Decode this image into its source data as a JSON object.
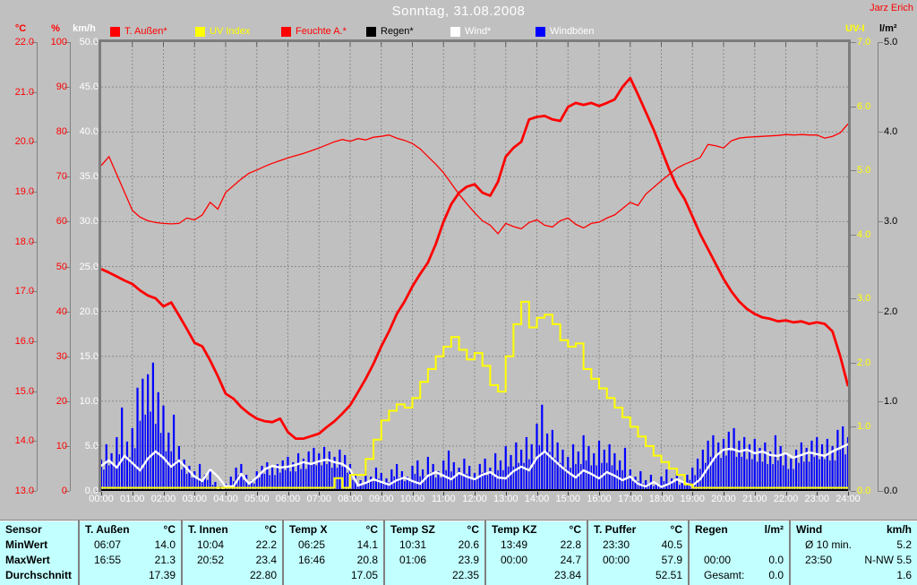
{
  "header": {
    "title": "Sonntag, 31.08.2008",
    "watermark": "Jarz Erich"
  },
  "legend": {
    "items": [
      {
        "label": "T. Außen*",
        "box": "#ff0000",
        "text": "#ff0000"
      },
      {
        "label": "UV Index",
        "box": "#ffff00",
        "text": "#ffff00"
      },
      {
        "label": "Feuchte A.*",
        "box": "#ff0000",
        "text": "#ff0000"
      },
      {
        "label": "Regen*",
        "box": "#000000",
        "text": "#000000"
      },
      {
        "label": "Wind*",
        "box": "#ffffff",
        "text": "#ffffff"
      },
      {
        "label": "Windböen",
        "box": "#0000ff",
        "text": "#ffffff"
      }
    ]
  },
  "axes": {
    "left": [
      {
        "unit": "°C",
        "color": "#ff0000",
        "ticks": [
          "22.0",
          "21.0",
          "20.0",
          "19.0",
          "18.0",
          "17.0",
          "16.0",
          "15.0",
          "14.0",
          "13.0"
        ]
      },
      {
        "unit": "%",
        "color": "#ff0000",
        "ticks": [
          "100",
          "90",
          "80",
          "70",
          "60",
          "50",
          "40",
          "30",
          "20",
          "10",
          "0"
        ]
      },
      {
        "unit": "km/h",
        "color": "#ffffff",
        "ticks": [
          "50.0",
          "45.0",
          "40.0",
          "35.0",
          "30.0",
          "25.0",
          "20.0",
          "15.0",
          "10.0",
          "5.0",
          "0.0"
        ]
      }
    ],
    "right": [
      {
        "unit": "UV-I",
        "color": "#ffff00",
        "ticks": [
          "7.0",
          "6.0",
          "5.0",
          "4.0",
          "3.0",
          "2.0",
          "1.0",
          "0.0"
        ]
      },
      {
        "unit": "l/m²",
        "color": "#000000",
        "ticks": [
          "5.0",
          "4.0",
          "3.0",
          "2.0",
          "1.0",
          "0.0"
        ]
      }
    ],
    "x_labels": [
      "00:00",
      "01:00",
      "02:00",
      "03:00",
      "04:00",
      "05:00",
      "06:00",
      "07:00",
      "08:00",
      "09:00",
      "10:00",
      "11:00",
      "12:00",
      "13:00",
      "14:00",
      "15:00",
      "16:00",
      "17:00",
      "18:00",
      "19:00",
      "20:00",
      "21:00",
      "22:00",
      "23:00",
      "24:00"
    ]
  },
  "chart_data": {
    "type": "line",
    "title": "Sonntag, 31.08.2008",
    "x_range_hours": [
      0,
      24
    ],
    "grid": "dashed, hourly vertical + 10 horizontal divisions",
    "legend_position": "top",
    "series": [
      {
        "name": "T. Außen",
        "unit": "°C",
        "color": "#ff0000",
        "style": "line-thick",
        "axis_min": 13,
        "axis_max": 22,
        "step_minutes": 15,
        "values": [
          17.45,
          17.38,
          17.3,
          17.22,
          17.15,
          17.02,
          16.92,
          16.86,
          16.7,
          16.78,
          16.52,
          16.25,
          15.97,
          15.9,
          15.62,
          15.3,
          14.95,
          14.85,
          14.68,
          14.55,
          14.45,
          14.4,
          14.38,
          14.45,
          14.18,
          14.05,
          14.05,
          14.1,
          14.15,
          14.28,
          14.4,
          14.55,
          14.72,
          14.98,
          15.25,
          15.55,
          15.9,
          16.2,
          16.55,
          16.8,
          17.1,
          17.35,
          17.58,
          17.95,
          18.4,
          18.75,
          18.98,
          19.1,
          19.15,
          18.98,
          18.92,
          19.2,
          19.7,
          19.88,
          20.0,
          20.45,
          20.5,
          20.52,
          20.45,
          20.42,
          20.7,
          20.78,
          20.74,
          20.78,
          20.72,
          20.78,
          20.85,
          21.1,
          21.28,
          20.95,
          20.6,
          20.25,
          19.85,
          19.45,
          19.1,
          18.85,
          18.5,
          18.15,
          17.85,
          17.55,
          17.25,
          17.0,
          16.8,
          16.65,
          16.55,
          16.48,
          16.45,
          16.4,
          16.42,
          16.38,
          16.4,
          16.35,
          16.38,
          16.35,
          16.2,
          15.7,
          15.1
        ]
      },
      {
        "name": "Feuchte A.",
        "unit": "%",
        "color": "#ff0000",
        "style": "line-thin",
        "axis_min": 0,
        "axis_max": 100,
        "step_minutes": 15,
        "values": [
          72.5,
          74.5,
          70.5,
          66.5,
          62.5,
          61.0,
          60.2,
          59.8,
          59.6,
          59.5,
          59.6,
          60.8,
          60.4,
          61.5,
          64.3,
          62.8,
          66.5,
          68.0,
          69.5,
          70.8,
          71.5,
          72.3,
          73.0,
          73.6,
          74.2,
          74.7,
          75.2,
          75.8,
          76.4,
          77.1,
          77.8,
          78.3,
          77.9,
          78.5,
          78.2,
          78.8,
          79.0,
          79.3,
          78.6,
          78.1,
          77.4,
          76.2,
          74.5,
          72.8,
          70.9,
          68.5,
          66.1,
          64.0,
          62.0,
          60.2,
          59.2,
          57.3,
          59.6,
          58.9,
          58.4,
          59.8,
          60.4,
          59.2,
          58.8,
          60.2,
          60.8,
          59.4,
          58.6,
          59.6,
          59.9,
          60.8,
          61.5,
          62.9,
          64.3,
          63.6,
          66.1,
          67.6,
          69.1,
          70.5,
          71.9,
          72.8,
          73.5,
          74.3,
          77.2,
          76.9,
          76.4,
          78.0,
          78.6,
          78.8,
          78.9,
          79.0,
          79.1,
          79.2,
          79.4,
          79.3,
          79.4,
          79.3,
          79.3,
          78.6,
          79.0,
          79.8,
          81.8
        ]
      },
      {
        "name": "UV Index",
        "unit": "UV-I",
        "color": "#ffff00",
        "style": "step",
        "axis_min": 0,
        "axis_max": 7,
        "step_minutes": 15,
        "values": [
          0,
          0,
          0,
          0,
          0,
          0,
          0,
          0,
          0,
          0,
          0,
          0,
          0,
          0,
          0,
          0,
          0,
          0,
          0,
          0,
          0,
          0,
          0,
          0,
          0,
          0,
          0,
          0,
          0,
          0,
          0.2,
          0.0,
          0.25,
          0.25,
          0.5,
          0.8,
          1.1,
          1.25,
          1.35,
          1.3,
          1.45,
          1.7,
          1.9,
          2.1,
          2.25,
          2.4,
          2.2,
          2.05,
          2.15,
          1.95,
          1.65,
          1.55,
          2.1,
          2.6,
          2.95,
          2.55,
          2.7,
          2.75,
          2.6,
          2.35,
          2.25,
          2.3,
          1.9,
          1.75,
          1.6,
          1.45,
          1.3,
          1.15,
          1.0,
          0.85,
          0.7,
          0.55,
          0.45,
          0.35,
          0.25,
          0.1,
          0,
          0,
          0,
          0,
          0,
          0,
          0,
          0,
          0,
          0,
          0,
          0,
          0,
          0,
          0,
          0,
          0,
          0,
          0,
          0,
          0
        ]
      },
      {
        "name": "Wind",
        "unit": "km/h",
        "color": "#ffffff",
        "style": "line",
        "axis_min": 0,
        "axis_max": 50,
        "step_minutes": 15,
        "values": [
          2.8,
          3.4,
          2.6,
          3.9,
          3.1,
          2.3,
          3.6,
          4.4,
          3.7,
          2.7,
          3.4,
          2.5,
          1.6,
          1.1,
          2.4,
          1.6,
          0.5,
          0.5,
          1.9,
          0.8,
          1.5,
          2.4,
          2.8,
          2.6,
          2.7,
          2.9,
          3.2,
          3.0,
          3.3,
          3.5,
          3.2,
          3.0,
          2.4,
          0.6,
          0.9,
          1.3,
          1.0,
          0.7,
          1.2,
          1.5,
          1.1,
          0.8,
          1.7,
          2.1,
          1.7,
          1.3,
          2.0,
          1.6,
          1.3,
          1.8,
          2.1,
          1.5,
          1.4,
          2.2,
          2.7,
          2.3,
          3.7,
          4.4,
          3.6,
          2.8,
          2.1,
          1.5,
          2.3,
          1.9,
          1.4,
          2.1,
          1.7,
          1.2,
          1.6,
          0.8,
          0.5,
          1.0,
          0.4,
          0.8,
          1.3,
          0.9,
          0.6,
          1.3,
          2.6,
          3.9,
          4.6,
          4.7,
          4.4,
          4.6,
          4.2,
          4.4,
          4.0,
          3.9,
          4.2,
          3.7,
          4.0,
          4.3,
          4.1,
          3.9,
          4.4,
          4.8,
          5.2
        ]
      },
      {
        "name": "Windböen",
        "unit": "km/h",
        "color": "#0000ff",
        "style": "bars",
        "axis_min": 0,
        "axis_max": 50,
        "step_minutes": 10,
        "values": [
          3.5,
          5.2,
          4.2,
          6.0,
          9.3,
          5.5,
          7.0,
          11.5,
          12.5,
          13.0,
          14.3,
          11.0,
          9.5,
          6.5,
          8.5,
          5.0,
          3.5,
          2.8,
          2.2,
          3.0,
          1.8,
          2.5,
          1.0,
          0.5,
          0.8,
          1.6,
          2.6,
          3.0,
          1.8,
          1.2,
          2.2,
          2.8,
          3.2,
          2.6,
          3.0,
          3.4,
          3.8,
          3.2,
          4.2,
          3.6,
          4.4,
          4.8,
          4.2,
          4.9,
          4.4,
          3.8,
          4.6,
          4.0,
          3.0,
          1.8,
          1.2,
          2.2,
          1.6,
          2.6,
          2.0,
          1.4,
          2.4,
          3.0,
          2.2,
          1.6,
          2.8,
          3.4,
          2.4,
          3.8,
          3.0,
          2.2,
          3.4,
          4.5,
          3.2,
          2.6,
          3.6,
          2.8,
          2.0,
          3.0,
          3.6,
          2.6,
          4.2,
          3.4,
          5.0,
          4.0,
          5.4,
          4.6,
          6.0,
          5.2,
          7.5,
          9.6,
          6.4,
          6.8,
          5.4,
          4.6,
          3.8,
          5.2,
          4.4,
          6.2,
          5.0,
          4.2,
          5.6,
          4.6,
          5.2,
          4.2,
          3.4,
          4.8,
          2.4,
          1.6,
          2.2,
          1.2,
          1.8,
          0.8,
          1.6,
          2.4,
          1.4,
          2.0,
          1.0,
          1.8,
          2.6,
          3.6,
          4.6,
          5.6,
          6.2,
          5.4,
          5.8,
          6.6,
          7.0,
          5.6,
          6.0,
          5.2,
          5.8,
          4.8,
          5.4,
          4.4,
          6.2,
          5.0,
          4.2,
          3.6,
          4.6,
          5.4,
          4.8,
          5.6,
          6.0,
          5.2,
          5.8,
          5.0,
          6.8,
          7.2,
          6.0
        ]
      },
      {
        "name": "Regen",
        "unit": "l/m²",
        "color": "#000000",
        "style": "line",
        "axis_min": 0,
        "axis_max": 5,
        "constant": 0
      }
    ]
  },
  "table": {
    "row_labels": {
      "sensor": "Sensor",
      "min": "MinWert",
      "max": "MaxWert",
      "avg": "Durchschnitt"
    },
    "columns": [
      {
        "name": "T. Außen",
        "unit": "°C",
        "min_time": "06:07",
        "min_val": "14.0",
        "max_time": "16:55",
        "max_val": "21.3",
        "avg_label": "",
        "avg_val": "17.39"
      },
      {
        "name": "T. Innen",
        "unit": "°C",
        "min_time": "10:04",
        "min_val": "22.2",
        "max_time": "20:52",
        "max_val": "23.4",
        "avg_label": "",
        "avg_val": "22.80"
      },
      {
        "name": "Temp X",
        "unit": "°C",
        "min_time": "06:25",
        "min_val": "14.1",
        "max_time": "16:46",
        "max_val": "20.8",
        "avg_label": "",
        "avg_val": "17.05"
      },
      {
        "name": "Temp SZ",
        "unit": "°C",
        "min_time": "10:31",
        "min_val": "20.6",
        "max_time": "01:06",
        "max_val": "23.9",
        "avg_label": "",
        "avg_val": "22.35"
      },
      {
        "name": "Temp KZ",
        "unit": "°C",
        "min_time": "13:49",
        "min_val": "22.8",
        "max_time": "00:00",
        "max_val": "24.7",
        "avg_label": "",
        "avg_val": "23.84"
      },
      {
        "name": "T. Puffer",
        "unit": "°C",
        "min_time": "23:30",
        "min_val": "40.5",
        "max_time": "00:00",
        "max_val": "57.9",
        "avg_label": "",
        "avg_val": "52.51"
      },
      {
        "name": "Regen",
        "unit": "l/m²",
        "min_time": "",
        "min_val": "",
        "max_time": "00:00",
        "max_val": "0.0",
        "avg_label": "Gesamt:",
        "avg_val": "0.0"
      },
      {
        "name": "Wind",
        "unit": "km/h",
        "min_time": "Ø 10 min.",
        "min_val": "5.2",
        "max_time": "23:50",
        "max_val": "N-NW 5.5",
        "avg_label": "",
        "avg_val": "1.6"
      }
    ]
  }
}
